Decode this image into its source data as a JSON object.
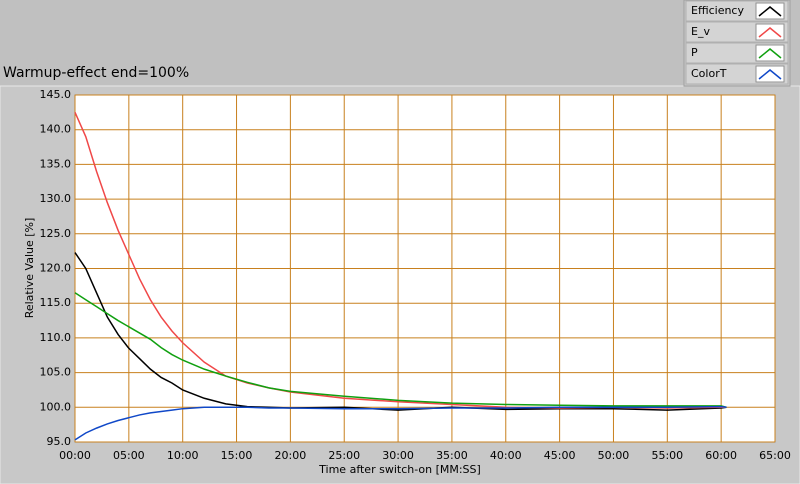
{
  "chart_data": {
    "type": "line",
    "title": "Warmup-effect end=100%",
    "xlabel": "Time after switch-on [MM:SS]",
    "ylabel": "Relative Value [%]",
    "x": [
      0,
      1,
      2,
      3,
      4,
      5,
      6,
      7,
      8,
      9,
      10,
      12,
      14,
      16,
      18,
      20,
      25,
      30,
      35,
      40,
      45,
      50,
      55,
      60,
      60.5
    ],
    "series": [
      {
        "name": "Efficiency",
        "color": "#000000",
        "values": [
          122.3,
          120,
          116.5,
          113,
          110.5,
          108.5,
          107,
          105.5,
          104.3,
          103.5,
          102.5,
          101.3,
          100.5,
          100.1,
          100,
          99.9,
          100,
          99.6,
          100,
          99.7,
          99.8,
          99.8,
          99.6,
          99.9,
          100
        ]
      },
      {
        "name": "E_v",
        "color": "#f04848",
        "values": [
          142.5,
          139,
          134,
          129.5,
          125.5,
          122,
          118.5,
          115.5,
          113,
          111,
          109.3,
          106.5,
          104.5,
          103.5,
          102.8,
          102.2,
          101.3,
          100.8,
          100.4,
          100,
          99.9,
          100,
          99.9,
          100,
          100
        ]
      },
      {
        "name": "P",
        "color": "#10a010",
        "values": [
          116.5,
          115.5,
          114.5,
          113.5,
          112.5,
          111.6,
          110.7,
          109.8,
          108.6,
          107.6,
          106.8,
          105.5,
          104.5,
          103.6,
          102.8,
          102.3,
          101.6,
          101,
          100.6,
          100.4,
          100.3,
          100.2,
          100.2,
          100.2,
          100
        ]
      },
      {
        "name": "ColorT",
        "color": "#1048c8",
        "values": [
          95.3,
          96.3,
          97,
          97.6,
          98.1,
          98.5,
          98.9,
          99.2,
          99.4,
          99.6,
          99.8,
          100,
          100,
          100,
          99.9,
          99.9,
          99.8,
          99.8,
          99.9,
          99.9,
          100,
          100,
          100,
          100.1,
          100
        ]
      }
    ],
    "xlim": [
      0,
      65
    ],
    "xticks": [
      {
        "value": 0,
        "label": "00:00"
      },
      {
        "value": 5,
        "label": "05:00"
      },
      {
        "value": 10,
        "label": "10:00"
      },
      {
        "value": 15,
        "label": "15:00"
      },
      {
        "value": 20,
        "label": "20:00"
      },
      {
        "value": 25,
        "label": "25:00"
      },
      {
        "value": 30,
        "label": "30:00"
      },
      {
        "value": 35,
        "label": "35:00"
      },
      {
        "value": 40,
        "label": "40:00"
      },
      {
        "value": 45,
        "label": "45:00"
      },
      {
        "value": 50,
        "label": "50:00"
      },
      {
        "value": 55,
        "label": "55:00"
      },
      {
        "value": 60,
        "label": "60:00"
      },
      {
        "value": 65,
        "label": "65:00"
      }
    ],
    "ylim": [
      95,
      145
    ],
    "yticks": [
      {
        "value": 95,
        "label": "95.0"
      },
      {
        "value": 100,
        "label": "100.0"
      },
      {
        "value": 105,
        "label": "105.0"
      },
      {
        "value": 110,
        "label": "110.0"
      },
      {
        "value": 115,
        "label": "115.0"
      },
      {
        "value": 120,
        "label": "120.0"
      },
      {
        "value": 125,
        "label": "125.0"
      },
      {
        "value": 130,
        "label": "130.0"
      },
      {
        "value": 135,
        "label": "135.0"
      },
      {
        "value": 140,
        "label": "140.0"
      },
      {
        "value": 145,
        "label": "145.0"
      }
    ],
    "grid": true,
    "grid_color": "#c8801e",
    "legend": "top-right"
  }
}
